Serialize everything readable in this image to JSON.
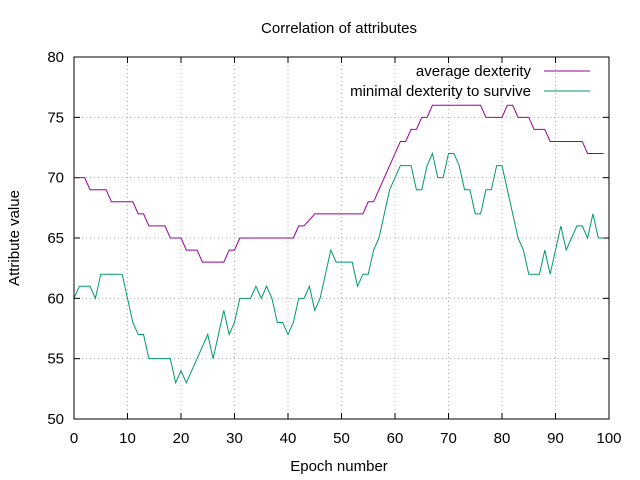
{
  "chart_data": {
    "type": "line",
    "title": "Correlation of attributes",
    "xlabel": "Epoch number",
    "ylabel": "Attribute value",
    "xlim": [
      0,
      100
    ],
    "ylim": [
      50,
      80
    ],
    "x_ticks": [
      0,
      10,
      20,
      30,
      40,
      50,
      60,
      70,
      80,
      90,
      100
    ],
    "y_ticks": [
      50,
      55,
      60,
      65,
      70,
      75,
      80
    ],
    "grid": true,
    "legend_position": "top-right",
    "series": [
      {
        "name": "average dexterity",
        "color": "#990099",
        "x": [
          0,
          2,
          3,
          6,
          7,
          11,
          12,
          13,
          14,
          17,
          18,
          20,
          21,
          23,
          24,
          28,
          29,
          30,
          31,
          40,
          41,
          42,
          43,
          45,
          46,
          51,
          52,
          54,
          55,
          56,
          57,
          58,
          59,
          60,
          61,
          62,
          63,
          64,
          65,
          66,
          67,
          76,
          77,
          78,
          79,
          80,
          81,
          82,
          83,
          85,
          86,
          88,
          89,
          90,
          91,
          95,
          96,
          99
        ],
        "values": [
          70,
          70,
          69,
          69,
          68,
          68,
          67,
          67,
          66,
          66,
          65,
          65,
          64,
          64,
          63,
          63,
          64,
          64,
          65,
          65,
          65,
          66,
          66,
          67,
          67,
          67,
          67,
          67,
          68,
          68,
          69,
          70,
          71,
          72,
          73,
          73,
          74,
          74,
          75,
          75,
          76,
          76,
          75,
          75,
          75,
          75,
          76,
          76,
          75,
          75,
          74,
          74,
          73,
          73,
          73,
          73,
          72,
          72
        ]
      },
      {
        "name": "minimal dexterity to survive",
        "color": "#009966",
        "x": [
          0,
          1,
          2,
          3,
          4,
          5,
          9,
          10,
          11,
          12,
          13,
          14,
          18,
          19,
          20,
          21,
          22,
          23,
          24,
          25,
          26,
          27,
          28,
          29,
          30,
          31,
          32,
          33,
          34,
          35,
          36,
          37,
          38,
          39,
          40,
          41,
          42,
          43,
          44,
          45,
          46,
          47,
          48,
          49,
          50,
          51,
          52,
          53,
          54,
          55,
          56,
          57,
          58,
          59,
          60,
          61,
          62,
          63,
          64,
          65,
          66,
          67,
          68,
          69,
          70,
          71,
          72,
          73,
          74,
          75,
          76,
          77,
          78,
          79,
          80,
          81,
          82,
          83,
          84,
          85,
          86,
          87,
          88,
          89,
          90,
          91,
          92,
          93,
          94,
          95,
          96,
          97,
          98,
          99
        ],
        "values": [
          60,
          61,
          61,
          61,
          60,
          62,
          62,
          60,
          58,
          57,
          57,
          55,
          55,
          53,
          54,
          53,
          54,
          55,
          56,
          57,
          55,
          57,
          59,
          57,
          58,
          60,
          60,
          60,
          61,
          60,
          61,
          60,
          58,
          58,
          57,
          58,
          60,
          60,
          61,
          59,
          60,
          62,
          64,
          63,
          63,
          63,
          63,
          61,
          62,
          62,
          64,
          65,
          67,
          69,
          70,
          71,
          71,
          71,
          69,
          69,
          71,
          72,
          70,
          70,
          72,
          72,
          71,
          69,
          69,
          67,
          67,
          69,
          69,
          71,
          71,
          69,
          67,
          65,
          64,
          62,
          62,
          62,
          64,
          62,
          64,
          66,
          64,
          65,
          66,
          66,
          65,
          67,
          65,
          65
        ]
      }
    ]
  }
}
